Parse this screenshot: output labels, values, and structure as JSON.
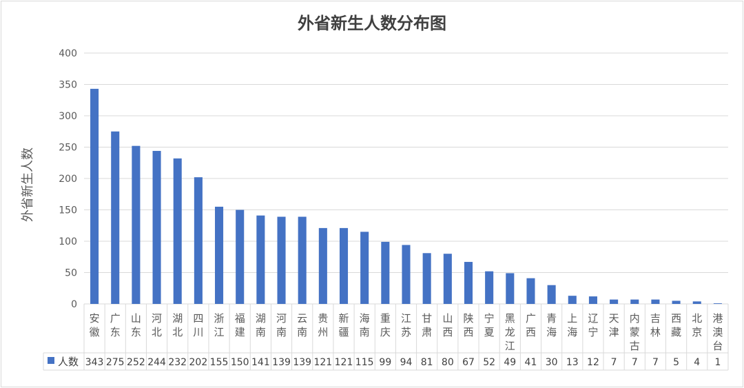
{
  "chart_data": {
    "type": "bar",
    "title": "外省新生人数分布图",
    "ylabel": "外省新生人数",
    "xlabel": "",
    "ylim": [
      0,
      400
    ],
    "yticks": [
      0,
      50,
      100,
      150,
      200,
      250,
      300,
      350,
      400
    ],
    "grid": true,
    "legend": "data-table-left",
    "categories": [
      "安徽",
      "广东",
      "山东",
      "河北",
      "湖北",
      "四川",
      "浙江",
      "福建",
      "湖南",
      "河南",
      "云南",
      "贵州",
      "新疆",
      "海南",
      "重庆",
      "江苏",
      "甘肃",
      "山西",
      "陕西",
      "宁夏",
      "黑龙江",
      "广西",
      "青海",
      "上海",
      "辽宁",
      "天津",
      "内蒙古",
      "吉林",
      "西藏",
      "北京",
      "港澳台"
    ],
    "series": [
      {
        "name": "人数",
        "color": "#4472C4",
        "values": [
          343,
          275,
          252,
          244,
          232,
          202,
          155,
          150,
          141,
          139,
          139,
          121,
          121,
          115,
          99,
          94,
          81,
          80,
          67,
          52,
          49,
          41,
          30,
          13,
          12,
          7,
          7,
          7,
          5,
          4,
          1
        ]
      }
    ]
  }
}
